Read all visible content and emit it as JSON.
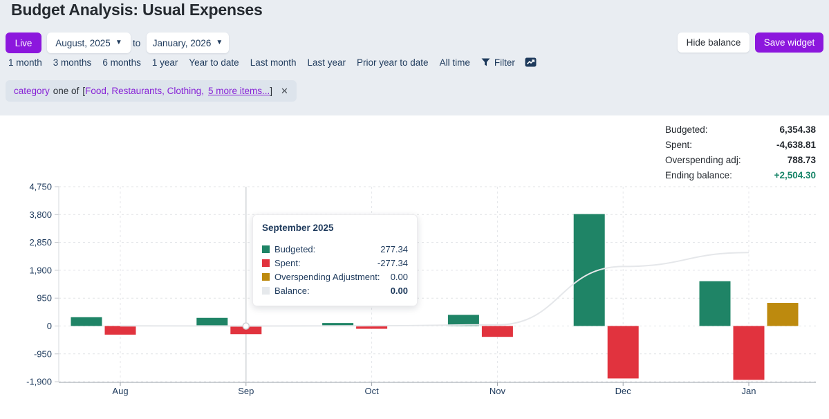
{
  "title": "Budget Analysis: Usual Expenses",
  "toolbar": {
    "live_label": "Live",
    "range_start": "August, 2025",
    "range_separator": "to",
    "range_end": "January, 2026",
    "hide_balance_label": "Hide balance",
    "save_widget_label": "Save widget"
  },
  "quick_ranges": {
    "items": [
      "1 month",
      "3 months",
      "6 months",
      "1 year",
      "Year to date",
      "Last month",
      "Last year",
      "Prior year to date",
      "All time"
    ],
    "filter_label": "Filter"
  },
  "filter_chip": {
    "field": "category",
    "op": "one of",
    "open_bracket": "[",
    "values": "Food, Restaurants, Clothing,",
    "more_link": "5 more items...",
    "close_bracket": "]",
    "close_label": "✕"
  },
  "summary": {
    "rows": [
      {
        "label": "Budgeted:",
        "value": "6,354.38"
      },
      {
        "label": "Spent:",
        "value": "-4,638.81"
      },
      {
        "label": "Overspending adj:",
        "value": "788.73"
      },
      {
        "label": "Ending balance:",
        "value": "+2,504.30"
      }
    ]
  },
  "tooltip": {
    "title": "September 2025",
    "rows": [
      {
        "label": "Budgeted:",
        "value": "277.34",
        "swatch": "budgeted"
      },
      {
        "label": "Spent:",
        "value": "-277.34",
        "swatch": "spent"
      },
      {
        "label": "Overspending Adjustment:",
        "value": "0.00",
        "swatch": "overspending"
      },
      {
        "label": "Balance:",
        "value": "0.00",
        "swatch": "balance",
        "bold": true
      }
    ]
  },
  "colors": {
    "accent": "#8c17dd",
    "budgeted": "#1f8466",
    "spent": "#e1333e",
    "overspending": "#bd8a0e",
    "balance": "#e6e9ec",
    "positive": "#178568",
    "navy": "#1e3a5c"
  },
  "chart_data": {
    "type": "bar",
    "title": "Budget Analysis: Usual Expenses",
    "categories": [
      "Aug",
      "Sep",
      "Oct",
      "Nov",
      "Dec",
      "Jan"
    ],
    "series": [
      {
        "name": "Budgeted",
        "kind": "bar",
        "color": "budgeted",
        "values": [
          300,
          277.34,
          103,
          380,
          3816,
          1527
        ]
      },
      {
        "name": "Spent",
        "kind": "bar",
        "color": "spent",
        "values": [
          -295,
          -277.34,
          -95,
          -370,
          -1789,
          -1836
        ]
      },
      {
        "name": "Overspending Adjustment",
        "kind": "bar",
        "color": "overspending",
        "values": [
          0,
          0,
          0,
          0,
          0,
          788.73
        ]
      },
      {
        "name": "Balance",
        "kind": "line",
        "color": "balance",
        "values": [
          5,
          0,
          8,
          40,
          2030,
          2504.3
        ]
      }
    ],
    "y_ticks": [
      {
        "value": 4750,
        "label": "4,750"
      },
      {
        "value": 3800,
        "label": "3,800"
      },
      {
        "value": 2850,
        "label": "2,850"
      },
      {
        "value": 1900,
        "label": "1,900"
      },
      {
        "value": 950,
        "label": "950"
      },
      {
        "value": 0,
        "label": "0"
      },
      {
        "value": -950,
        "label": "-950"
      },
      {
        "value": -1900,
        "label": "-1,900"
      }
    ],
    "ylim": [
      -1900,
      4750
    ],
    "xlabel": "",
    "ylabel": "",
    "grid": "dashed",
    "legend": "hidden",
    "hover_index": 1
  }
}
